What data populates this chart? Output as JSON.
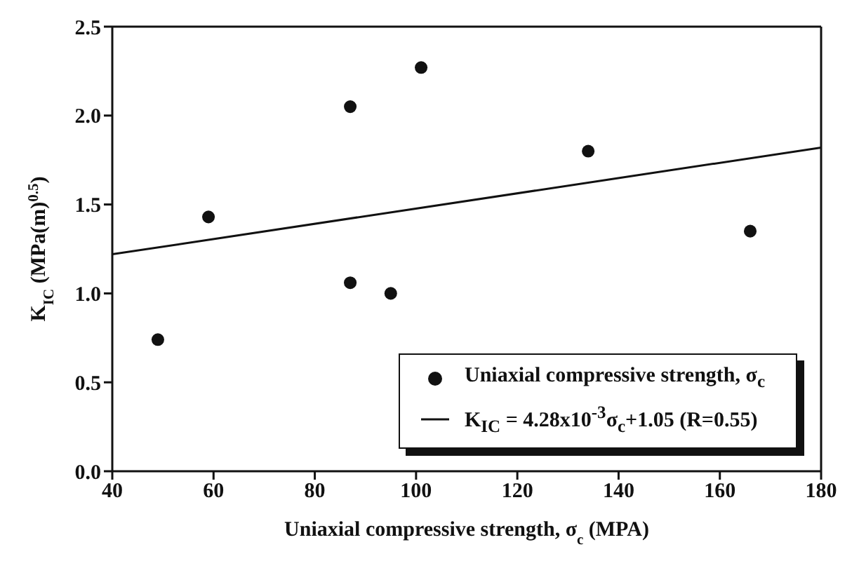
{
  "chart_data": {
    "type": "scatter",
    "xlabel": "Uniaxial compressive strength, σ$_{c}$ (MPA)",
    "ylabel": "K$_{IC}$ (MPa(m)$^{0.5}$)",
    "xlim": [
      40,
      180
    ],
    "xticks": [
      40,
      60,
      80,
      100,
      120,
      140,
      160,
      180
    ],
    "ylim": [
      0,
      2.5
    ],
    "yticks": [
      {
        "value": 0,
        "label": "0.0"
      },
      {
        "value": 0.5,
        "label": "0.5"
      },
      {
        "value": 1,
        "label": "1.0"
      },
      {
        "value": 1.5,
        "label": "1.5"
      },
      {
        "value": 2,
        "label": "2.0"
      },
      {
        "value": 2.5,
        "label": "2.5"
      }
    ],
    "legend": "bottom right",
    "series": [
      {
        "name": "Uniaxial compressive strength, σ$_{c}$",
        "color": "#111111",
        "marker": "circle",
        "x": [
          49,
          59,
          87,
          87,
          95,
          101,
          134,
          166
        ],
        "values": [
          0.74,
          1.43,
          2.05,
          1.06,
          1.0,
          2.27,
          1.8,
          1.35
        ]
      },
      {
        "type": "line",
        "name": "K$_{IC}$ = 4.28x10$^{-3}$σ$_{c}$+1.05 (R=0.55)",
        "color": "#111111",
        "marker": "none",
        "line_style": "solid",
        "x": [
          40,
          180
        ],
        "values": [
          1.22,
          1.82
        ]
      }
    ]
  }
}
